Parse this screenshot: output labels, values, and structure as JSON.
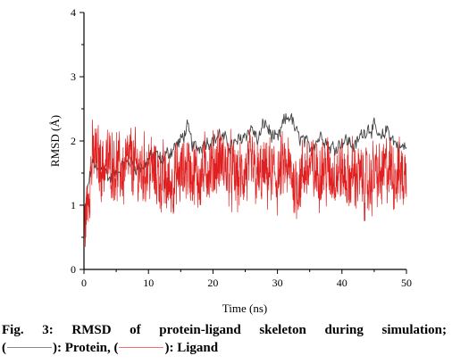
{
  "chart_data": {
    "type": "line",
    "title": "",
    "xlabel": "Time (ns)",
    "ylabel": "RMSD (Å)",
    "xlim": [
      0,
      50
    ],
    "ylim": [
      0,
      4
    ],
    "x_ticks": [
      "0",
      "10",
      "20",
      "30",
      "40",
      "50"
    ],
    "y_ticks": [
      "0",
      "1",
      "2",
      "3",
      "4"
    ],
    "grid": false,
    "series": [
      {
        "name": "Protein",
        "color": "#444444",
        "x": [
          0,
          0.5,
          1,
          1.5,
          2,
          3,
          4,
          5,
          6,
          7,
          8,
          9,
          10,
          11,
          12,
          13,
          14,
          15,
          16,
          17,
          18,
          19,
          20,
          21,
          22,
          23,
          24,
          25,
          26,
          27,
          28,
          29,
          30,
          31,
          32,
          33,
          34,
          35,
          36,
          37,
          38,
          39,
          40,
          41,
          42,
          43,
          44,
          45,
          46,
          47,
          48,
          49,
          50
        ],
        "y": [
          0.8,
          1.2,
          1.5,
          1.7,
          1.5,
          1.6,
          1.4,
          1.5,
          1.6,
          1.7,
          1.6,
          1.6,
          1.7,
          1.8,
          1.7,
          1.8,
          1.9,
          2.0,
          2.2,
          1.9,
          1.9,
          2.0,
          2.0,
          2.1,
          2.0,
          1.9,
          2.0,
          2.1,
          2.2,
          2.0,
          2.3,
          2.1,
          2.0,
          2.3,
          2.4,
          2.1,
          2.0,
          1.9,
          2.0,
          2.1,
          1.9,
          1.9,
          2.0,
          2.0,
          1.9,
          2.1,
          2.2,
          2.2,
          2.0,
          2.2,
          2.0,
          1.9,
          1.9
        ]
      },
      {
        "name": "Ligand",
        "color": "#e02020",
        "x": [
          0,
          0.5,
          1,
          1.5,
          2,
          3,
          4,
          5,
          6,
          7,
          8,
          9,
          10,
          11,
          12,
          13,
          14,
          15,
          16,
          17,
          18,
          19,
          20,
          21,
          22,
          23,
          24,
          25,
          26,
          27,
          28,
          29,
          30,
          31,
          32,
          33,
          34,
          35,
          36,
          37,
          38,
          39,
          40,
          41,
          42,
          43,
          44,
          45,
          46,
          47,
          48,
          49,
          50
        ],
        "y": [
          0.6,
          1.0,
          1.5,
          1.8,
          1.7,
          1.6,
          1.7,
          1.6,
          1.5,
          1.7,
          1.6,
          1.5,
          1.6,
          1.5,
          1.4,
          1.3,
          1.4,
          1.5,
          1.6,
          1.5,
          1.4,
          1.6,
          1.6,
          1.7,
          1.6,
          1.5,
          1.4,
          1.5,
          1.6,
          1.4,
          1.5,
          1.5,
          1.4,
          1.6,
          1.5,
          1.3,
          1.5,
          1.6,
          1.5,
          1.6,
          1.5,
          1.5,
          1.5,
          1.4,
          1.5,
          1.4,
          1.3,
          1.5,
          1.4,
          1.6,
          1.5,
          1.5,
          1.4
        ]
      }
    ]
  },
  "caption": {
    "line1": "Fig. 3: RMSD of protein-ligand skeleton during simulation;",
    "open_paren": "(",
    "protein_label": "): Protein, (",
    "ligand_label": "): Ligand"
  }
}
